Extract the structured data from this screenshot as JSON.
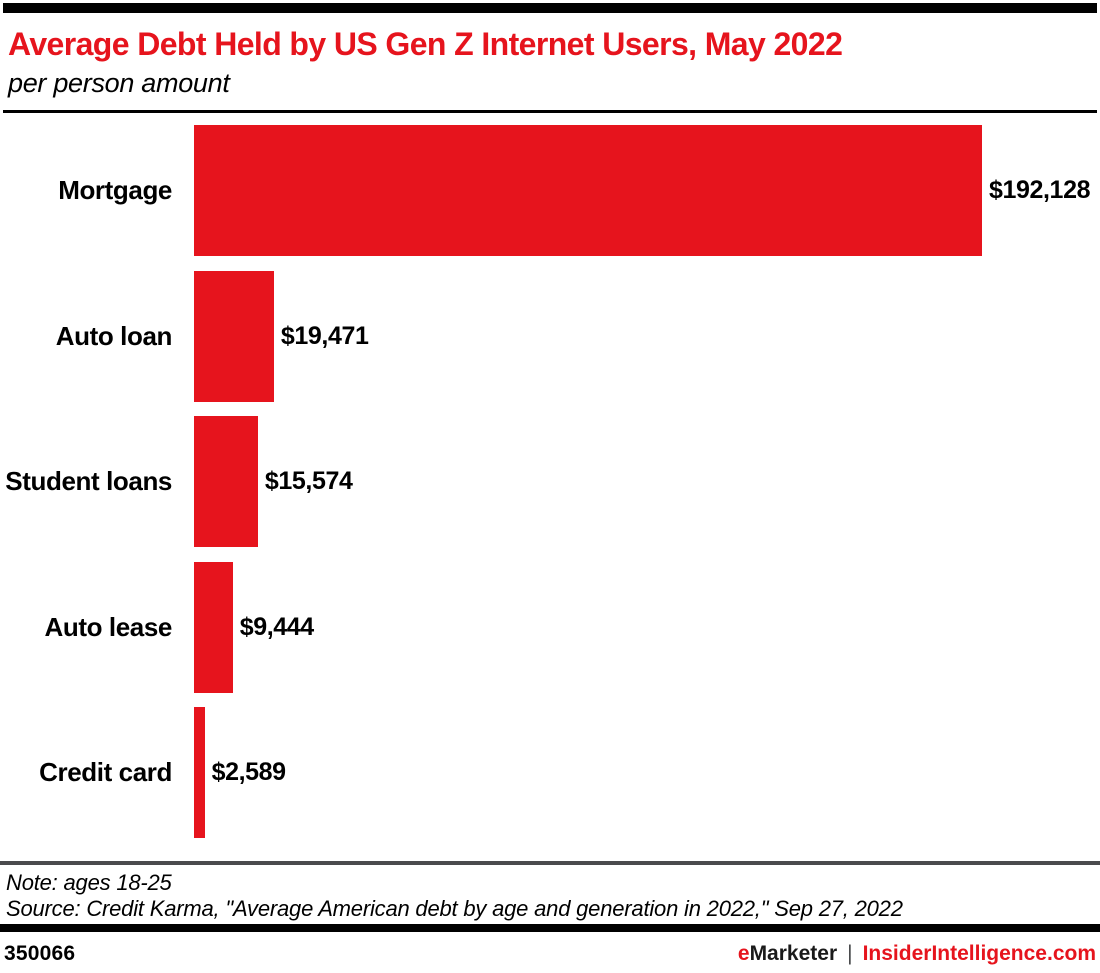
{
  "header": {
    "title": "Average Debt Held by US Gen Z Internet Users, May 2022",
    "subtitle": "per person amount"
  },
  "chart_data": {
    "type": "bar",
    "orientation": "horizontal",
    "title": "Average Debt Held by US Gen Z Internet Users, May 2022",
    "subtitle": "per person amount",
    "categories": [
      "Mortgage",
      "Auto loan",
      "Student loans",
      "Auto lease",
      "Credit card"
    ],
    "values": [
      192128,
      19471,
      15574,
      9444,
      2589
    ],
    "value_labels": [
      "$192,128",
      "$19,471",
      "$15,574",
      "$9,444",
      "$2,589"
    ],
    "unit": "USD per person",
    "xlim": [
      0,
      192128
    ],
    "grid": false,
    "legend": "none",
    "bar_color": "#e6141d"
  },
  "footer": {
    "note": "Note: ages 18-25",
    "source": "Source: Credit Karma, \"Average American debt by age and generation in 2022,\" Sep 27, 2022",
    "chart_id": "350066",
    "brand": {
      "prefix": "e",
      "name": "Marketer",
      "separator": "|",
      "site": "InsiderIntelligence.com"
    }
  },
  "colors": {
    "accent_red": "#e6141d",
    "rule_black": "#000000",
    "rule_gray": "#4a4b4d"
  }
}
